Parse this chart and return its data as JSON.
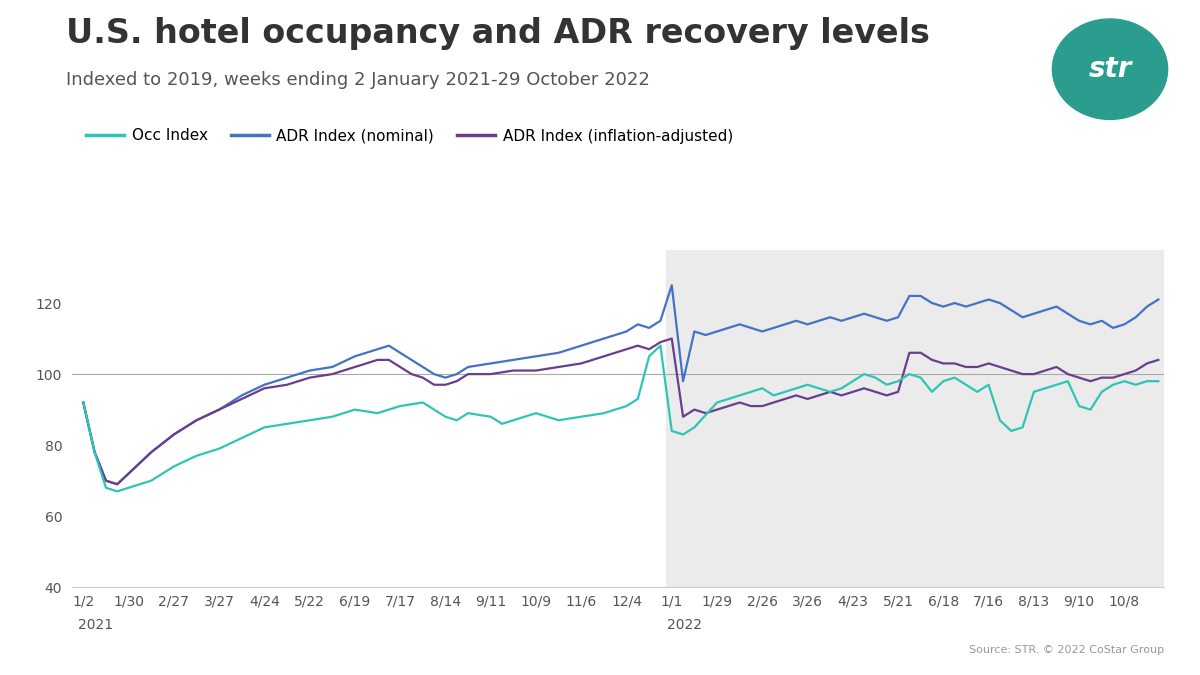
{
  "title": "U.S. hotel occupancy and ADR recovery levels",
  "subtitle": "Indexed to 2019, weeks ending 2 January 2021-29 October 2022",
  "source": "Source: STR. © 2022 CoStar Group",
  "legend": [
    "Occ Index",
    "ADR Index (nominal)",
    "ADR Index (inflation-adjusted)"
  ],
  "colors": {
    "occ": "#2EC4B6",
    "adr_nominal": "#4472C4",
    "adr_real": "#6A3D8F"
  },
  "x_tick_labels_2021": [
    "1/2",
    "1/30",
    "2/27",
    "3/27",
    "4/24",
    "5/22",
    "6/19",
    "7/17",
    "8/14",
    "9/11",
    "10/9",
    "11/6",
    "12/4"
  ],
  "x_tick_labels_2022": [
    "1/1",
    "1/29",
    "2/26",
    "3/26",
    "4/23",
    "5/21",
    "6/18",
    "7/16",
    "8/13",
    "9/10",
    "10/8"
  ],
  "ylim": [
    40,
    135
  ],
  "yticks": [
    40,
    60,
    80,
    100,
    120
  ],
  "background_color": "#FFFFFF",
  "shade_color": "#EBEBEB",
  "logo_bg": "#2A9D8F",
  "logo_text": "str",
  "title_fontsize": 24,
  "subtitle_fontsize": 13,
  "tick_fontsize": 10,
  "legend_fontsize": 11
}
